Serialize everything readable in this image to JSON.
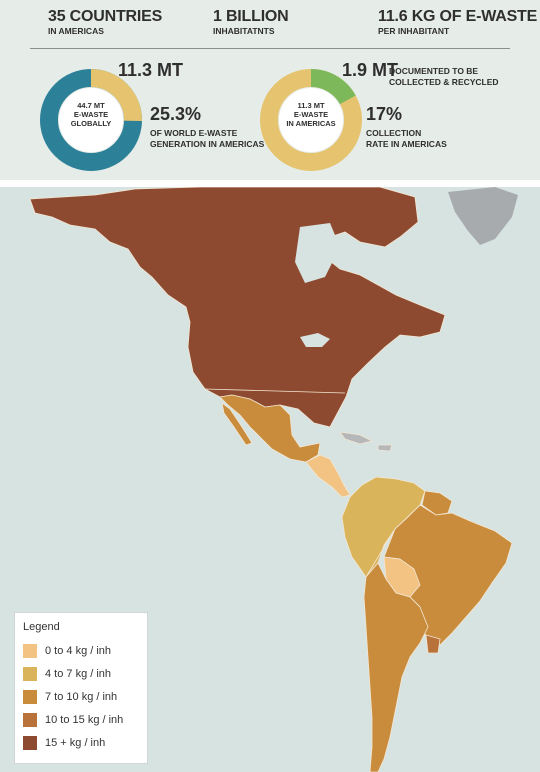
{
  "stats": {
    "countries": {
      "value": "35 Countries",
      "label": "In Americas"
    },
    "inhabitants": {
      "value": "1 Billion",
      "label": "Inhabitatnts"
    },
    "per_capita": {
      "value": "11.6 kg of e-waste",
      "label": "Per inhabitant"
    }
  },
  "donut_left": {
    "center_lines": [
      "44.7 Mt",
      "e-waste",
      "globally"
    ],
    "value_label": "11.3 Mt",
    "share_percent": "25.3%",
    "share_caption_line1": "of world e-waste",
    "share_caption_line2": "generation in Americas",
    "colors": {
      "total": "#2c8199",
      "americas": "#e6c46f"
    },
    "fraction_americas": 0.253
  },
  "donut_right": {
    "center_lines": [
      "11.3 Mt",
      "e-waste",
      "in Americas"
    ],
    "value_label": "1.9 Mt",
    "value_caption_line1": "documented to be",
    "value_caption_line2": "collected & recycled",
    "rate_percent": "17%",
    "rate_caption_line1": "collection",
    "rate_caption_line2": "rate in Americas",
    "colors": {
      "generated": "#e6c46f",
      "collected": "#7db95a"
    },
    "fraction_collected": 0.17
  },
  "legend": {
    "title": "Legend",
    "items": [
      {
        "label": "0 to 4 kg / inh",
        "color": "#f2c382"
      },
      {
        "label": "4 to 7 kg / inh",
        "color": "#d9b45a"
      },
      {
        "label": "7 to 10 kg / inh",
        "color": "#c98c3c"
      },
      {
        "label": "10 to 15 kg / inh",
        "color": "#b8723a"
      },
      {
        "label": "15 + kg / inh",
        "color": "#8e4a31"
      }
    ]
  },
  "map_colors": {
    "ocean": "#d6e3e1",
    "greenland": "#a8abad",
    "no_data": "#b5b7b9",
    "borders": "#f3e6d2"
  }
}
